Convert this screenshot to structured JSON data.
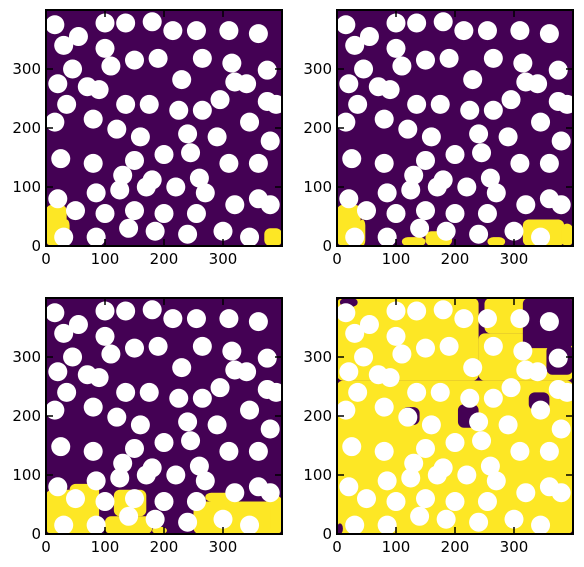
{
  "colors": {
    "background_phase": "#440154",
    "invaded_phase": "#fde725",
    "grains": "#ffffff",
    "frame": "#000000"
  },
  "chart_data": [
    {
      "type": "heatmap",
      "xlim": [
        0,
        400
      ],
      "ylim": [
        0,
        400
      ],
      "xticks": [
        "0",
        "100",
        "200",
        "300"
      ],
      "yticks": [
        "0",
        "100",
        "200",
        "300"
      ],
      "invaded_regions": [
        {
          "x": 0,
          "y": 0,
          "w": 35,
          "h": 70
        },
        {
          "x": 30,
          "y": 0,
          "w": 10,
          "h": 45
        },
        {
          "x": 370,
          "y": 0,
          "w": 30,
          "h": 30
        }
      ]
    },
    {
      "type": "heatmap",
      "xlim": [
        0,
        400
      ],
      "ylim": [
        0,
        400
      ],
      "xticks": [
        "0",
        "100",
        "200",
        "300"
      ],
      "yticks": [
        "0",
        "100",
        "200",
        "300"
      ],
      "invaded_regions": [
        {
          "x": 0,
          "y": 0,
          "w": 40,
          "h": 70
        },
        {
          "x": 38,
          "y": 0,
          "w": 10,
          "h": 45
        },
        {
          "x": 110,
          "y": 0,
          "w": 40,
          "h": 15
        },
        {
          "x": 150,
          "y": 0,
          "w": 45,
          "h": 25
        },
        {
          "x": 255,
          "y": 0,
          "w": 30,
          "h": 15
        },
        {
          "x": 315,
          "y": 0,
          "w": 70,
          "h": 45
        },
        {
          "x": 380,
          "y": 0,
          "w": 20,
          "h": 38
        }
      ]
    },
    {
      "type": "heatmap",
      "xlim": [
        0,
        400
      ],
      "ylim": [
        0,
        400
      ],
      "xticks": [
        "0",
        "100",
        "200",
        "300"
      ],
      "yticks": [
        "0",
        "100",
        "200",
        "300"
      ],
      "invaded_regions": [
        {
          "x": 0,
          "y": 0,
          "w": 90,
          "h": 75
        },
        {
          "x": 40,
          "y": 60,
          "w": 50,
          "h": 25
        },
        {
          "x": 100,
          "y": 0,
          "w": 80,
          "h": 30
        },
        {
          "x": 115,
          "y": 30,
          "w": 55,
          "h": 45
        },
        {
          "x": 180,
          "y": 0,
          "w": 25,
          "h": 12
        },
        {
          "x": 250,
          "y": 0,
          "w": 150,
          "h": 55
        },
        {
          "x": 270,
          "y": 55,
          "w": 60,
          "h": 15
        },
        {
          "x": 380,
          "y": 0,
          "w": 20,
          "h": 65
        }
      ]
    },
    {
      "type": "heatmap",
      "xlim": [
        0,
        400
      ],
      "ylim": [
        0,
        400
      ],
      "xticks": [
        "0",
        "100",
        "200",
        "300"
      ],
      "yticks": [
        "0",
        "100",
        "200",
        "300"
      ],
      "invaded_regions": [
        {
          "x": 0,
          "y": 0,
          "w": 400,
          "h": 260
        },
        {
          "x": 0,
          "y": 260,
          "w": 240,
          "h": 140
        },
        {
          "x": 240,
          "y": 260,
          "w": 160,
          "h": 80
        },
        {
          "x": 250,
          "y": 340,
          "w": 150,
          "h": 60
        }
      ],
      "uninvaded_regions": [
        {
          "x": 315,
          "y": 315,
          "w": 85,
          "h": 85
        },
        {
          "x": 355,
          "y": 270,
          "w": 45,
          "h": 50
        },
        {
          "x": 0,
          "y": 0,
          "w": 10,
          "h": 18
        },
        {
          "x": 205,
          "y": 180,
          "w": 35,
          "h": 40
        },
        {
          "x": 325,
          "y": 210,
          "w": 35,
          "h": 30
        },
        {
          "x": 110,
          "y": 185,
          "w": 30,
          "h": 30
        },
        {
          "x": 5,
          "y": 385,
          "w": 30,
          "h": 15
        }
      ]
    }
  ],
  "grains": [
    [
      15,
      375
    ],
    [
      55,
      355
    ],
    [
      100,
      378
    ],
    [
      135,
      378
    ],
    [
      180,
      380
    ],
    [
      215,
      365
    ],
    [
      255,
      365
    ],
    [
      310,
      365
    ],
    [
      360,
      360
    ],
    [
      30,
      340
    ],
    [
      100,
      335
    ],
    [
      150,
      315
    ],
    [
      190,
      318
    ],
    [
      265,
      318
    ],
    [
      315,
      310
    ],
    [
      375,
      298
    ],
    [
      45,
      300
    ],
    [
      110,
      305
    ],
    [
      20,
      275
    ],
    [
      70,
      270
    ],
    [
      230,
      282
    ],
    [
      320,
      278
    ],
    [
      340,
      275
    ],
    [
      35,
      240
    ],
    [
      90,
      265
    ],
    [
      135,
      240
    ],
    [
      175,
      240
    ],
    [
      225,
      230
    ],
    [
      265,
      230
    ],
    [
      295,
      248
    ],
    [
      375,
      245
    ],
    [
      15,
      210
    ],
    [
      80,
      215
    ],
    [
      120,
      198
    ],
    [
      160,
      185
    ],
    [
      240,
      190
    ],
    [
      290,
      185
    ],
    [
      345,
      210
    ],
    [
      380,
      178
    ],
    [
      25,
      148
    ],
    [
      80,
      140
    ],
    [
      150,
      145
    ],
    [
      200,
      155
    ],
    [
      245,
      158
    ],
    [
      310,
      140
    ],
    [
      360,
      140
    ],
    [
      180,
      112
    ],
    [
      130,
      120
    ],
    [
      260,
      115
    ],
    [
      20,
      80
    ],
    [
      85,
      90
    ],
    [
      125,
      95
    ],
    [
      170,
      100
    ],
    [
      220,
      100
    ],
    [
      270,
      90
    ],
    [
      320,
      70
    ],
    [
      360,
      80
    ],
    [
      50,
      60
    ],
    [
      100,
      55
    ],
    [
      150,
      60
    ],
    [
      200,
      55
    ],
    [
      255,
      55
    ],
    [
      30,
      15
    ],
    [
      85,
      15
    ],
    [
      140,
      30
    ],
    [
      185,
      25
    ],
    [
      240,
      20
    ],
    [
      300,
      25
    ],
    [
      345,
      15
    ],
    [
      380,
      70
    ],
    [
      390,
      240
    ]
  ]
}
